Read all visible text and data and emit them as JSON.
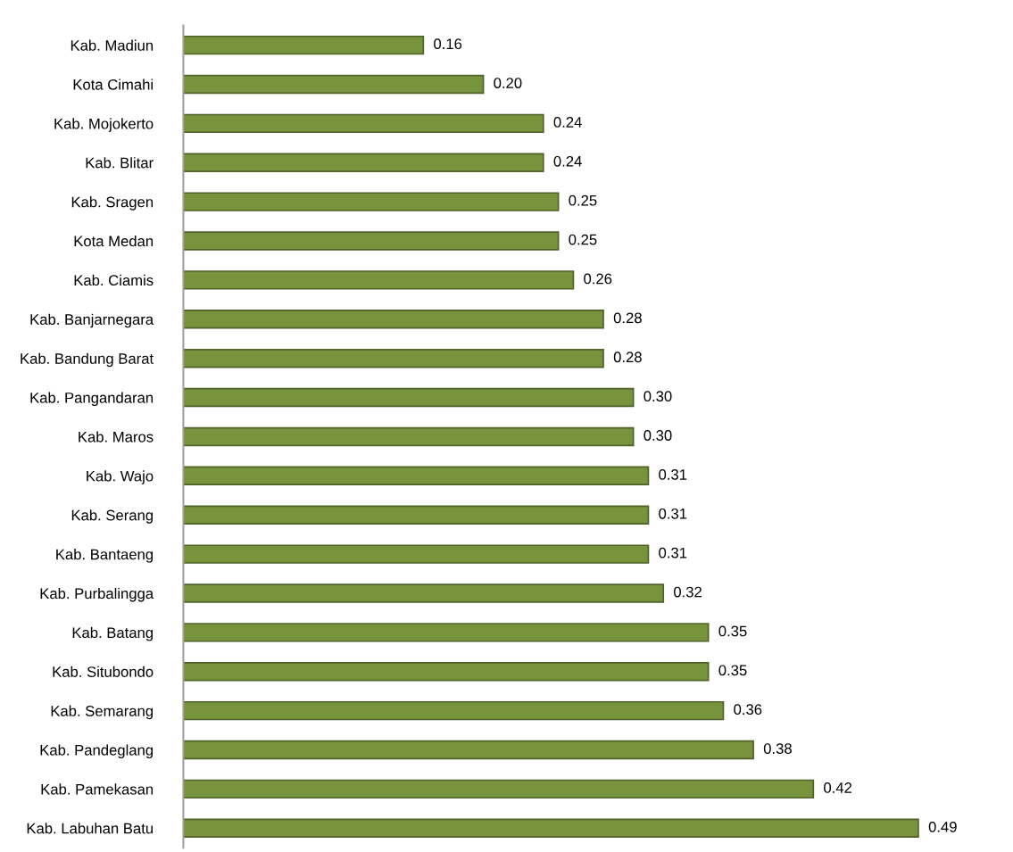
{
  "chart_data": {
    "type": "bar",
    "orientation": "horizontal",
    "categories": [
      "Kab. Madiun",
      "Kota Cimahi",
      "Kab. Mojokerto",
      "Kab. Blitar",
      "Kab. Sragen",
      "Kota Medan",
      "Kab. Ciamis",
      "Kab. Banjarnegara",
      "Kab. Bandung Barat",
      "Kab. Pangandaran",
      "Kab. Maros",
      "Kab. Wajo",
      "Kab. Serang",
      "Kab. Bantaeng",
      "Kab. Purbalingga",
      "Kab. Batang",
      "Kab. Situbondo",
      "Kab. Semarang",
      "Kab. Pandeglang",
      "Kab. Pamekasan",
      "Kab. Labuhan Batu"
    ],
    "values": [
      0.16,
      0.2,
      0.24,
      0.24,
      0.25,
      0.25,
      0.26,
      0.28,
      0.28,
      0.3,
      0.3,
      0.31,
      0.31,
      0.31,
      0.32,
      0.35,
      0.35,
      0.36,
      0.38,
      0.42,
      0.49
    ],
    "value_labels": [
      "0.16",
      "0.20",
      "0.24",
      "0.24",
      "0.25",
      "0.25",
      "0.26",
      "0.28",
      "0.28",
      "0.30",
      "0.30",
      "0.31",
      "0.31",
      "0.31",
      "0.32",
      "0.35",
      "0.35",
      "0.36",
      "0.38",
      "0.42",
      "0.49"
    ],
    "color": "#77933c",
    "grid": false,
    "legend": false
  }
}
